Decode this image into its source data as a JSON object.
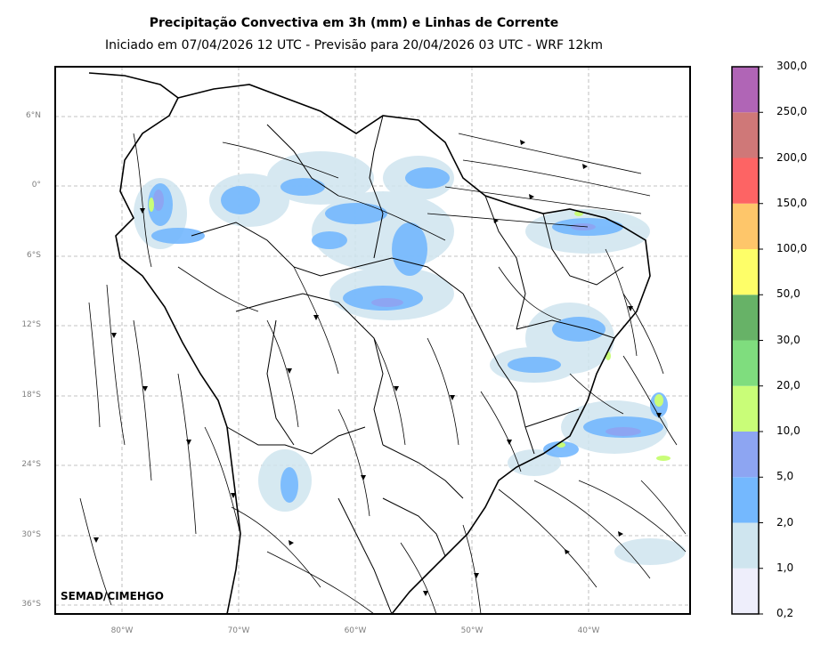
{
  "title": "Precipitação Convectiva em 3h (mm) e Linhas de Corrente",
  "subtitle": "Iniciado em 07/04/2026 12 UTC - Previsão para 20/04/2026 03 UTC - WRF 12km",
  "credit": "SEMAD/CIMEHGO",
  "lat_labels": [
    "6°N",
    "0°",
    "6°S",
    "12°S",
    "18°S",
    "24°S",
    "30°S",
    "36°S"
  ],
  "lon_labels": [
    "80°W",
    "70°W",
    "60°W",
    "50°W",
    "40°W"
  ],
  "colorbar": {
    "labels": [
      "0,2",
      "1,0",
      "2,0",
      "5,0",
      "10,0",
      "20,0",
      "30,0",
      "50,0",
      "100,0",
      "150,0",
      "200,0",
      "250,0",
      "300,0"
    ],
    "colors": [
      "#eeeefb",
      "#cfe5ef",
      "#74b8fe",
      "#8da5f2",
      "#c9fd78",
      "#7fdd7e",
      "#67b267",
      "#fefe68",
      "#fec66a",
      "#fd6464",
      "#cf7878",
      "#b065b6"
    ]
  },
  "colors": {
    "frame": "#000000",
    "grid": "#b0b0b0",
    "streamline": "#000000",
    "border": "#000000"
  }
}
